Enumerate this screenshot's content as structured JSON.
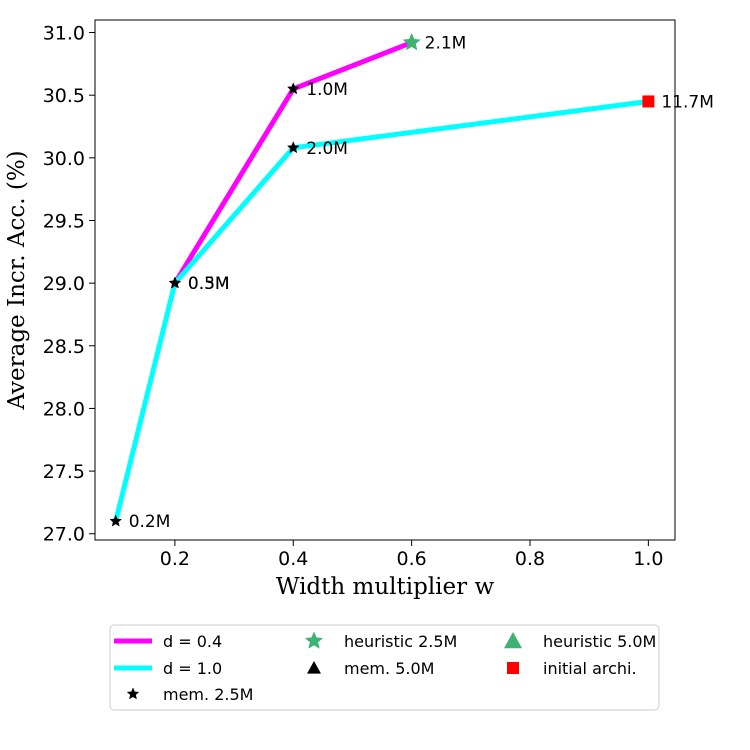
{
  "chart_data": {
    "type": "line",
    "title": "",
    "xlabel": "Width multiplier w",
    "ylabel": "Average Incr. Acc. (%)",
    "xlim": [
      0.065,
      1.045
    ],
    "ylim": [
      26.95,
      31.1
    ],
    "xticks": [
      0.2,
      0.4,
      0.6,
      0.8,
      1.0
    ],
    "xtick_labels": [
      "0.2",
      "0.4",
      "0.6",
      "0.8",
      "1.0"
    ],
    "yticks": [
      27.0,
      27.5,
      28.0,
      28.5,
      29.0,
      29.5,
      30.0,
      30.5,
      31.0
    ],
    "ytick_labels": [
      "27.0",
      "27.5",
      "28.0",
      "28.5",
      "29.0",
      "29.5",
      "30.0",
      "30.5",
      "31.0"
    ],
    "grid": false,
    "legend_position": "below plot, three columns",
    "series": [
      {
        "name": "d = 0.4",
        "color": "#ff00ff",
        "x": [
          0.2,
          0.4,
          0.6
        ],
        "y": [
          29.0,
          30.55,
          30.92
        ]
      },
      {
        "name": "d = 1.0",
        "color": "#00ffff",
        "x": [
          0.1,
          0.2,
          0.4,
          1.0
        ],
        "y": [
          27.1,
          29.0,
          30.08,
          30.45
        ]
      }
    ],
    "markers": [
      {
        "x": 0.1,
        "y": 27.1,
        "shape": "star",
        "color": "#000000",
        "label": "0.2M"
      },
      {
        "x": 0.2,
        "y": 29.0,
        "shape": "star",
        "color": "#000000",
        "label": "0.5M"
      },
      {
        "x": 0.2,
        "y": 29.0,
        "shape": "star",
        "color": "#000000",
        "label": "0.3M"
      },
      {
        "x": 0.4,
        "y": 30.55,
        "shape": "star",
        "color": "#000000",
        "label": "1.0M"
      },
      {
        "x": 0.4,
        "y": 30.08,
        "shape": "star",
        "color": "#000000",
        "label": "2.0M"
      },
      {
        "x": 0.6,
        "y": 30.92,
        "shape": "star",
        "color": "#3cb371",
        "label": "2.1M"
      },
      {
        "x": 1.0,
        "y": 30.45,
        "shape": "square",
        "color": "#ff0000",
        "label": "11.7M"
      }
    ],
    "legend": [
      {
        "label": "d = 0.4",
        "kind": "line",
        "color": "#ff00ff"
      },
      {
        "label": "d = 1.0",
        "kind": "line",
        "color": "#00ffff"
      },
      {
        "label": "mem. 2.5M",
        "kind": "star",
        "color": "#000000"
      },
      {
        "label": "heuristic 2.5M",
        "kind": "star",
        "color": "#3cb371"
      },
      {
        "label": "mem. 5.0M",
        "kind": "triangle",
        "color": "#000000"
      },
      {
        "label": "heuristic 5.0M",
        "kind": "triangle",
        "color": "#3cb371"
      },
      {
        "label": "initial archi.",
        "kind": "square",
        "color": "#ff0000"
      }
    ]
  }
}
